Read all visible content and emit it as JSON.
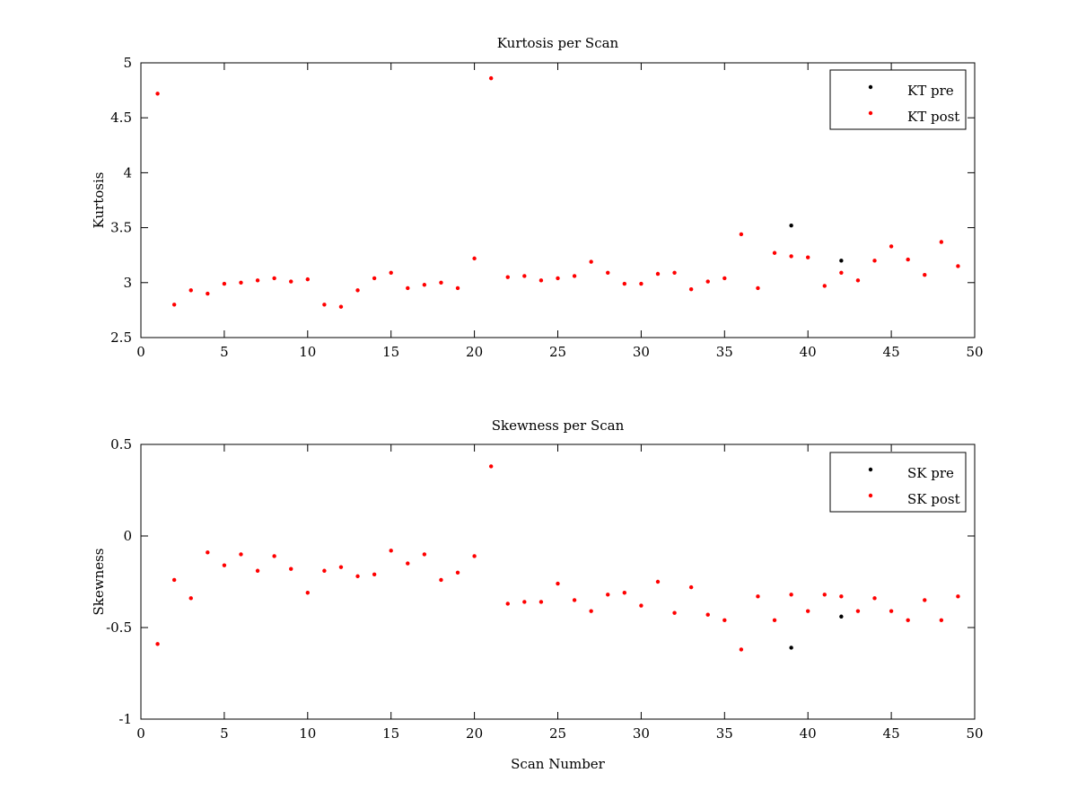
{
  "chart_data": [
    {
      "type": "scatter",
      "title": "Kurtosis per Scan",
      "xlabel": "",
      "ylabel": "Kurtosis",
      "xlim": [
        0,
        50
      ],
      "ylim": [
        2.5,
        5
      ],
      "xticks": [
        0,
        5,
        10,
        15,
        20,
        25,
        30,
        35,
        40,
        45,
        50
      ],
      "xtick_labels": [
        "0",
        "5",
        "10",
        "15",
        "20",
        "25",
        "30",
        "35",
        "40",
        "45",
        "50"
      ],
      "yticks": [
        2.5,
        3,
        3.5,
        4,
        4.5,
        5
      ],
      "ytick_labels": [
        "2.5",
        "3",
        "3.5",
        "4",
        "4.5",
        "5"
      ],
      "grid": false,
      "legend_position": "top-right",
      "series": [
        {
          "name": "KT pre",
          "color": "#000000",
          "marker": "dot",
          "x": [
            39,
            42
          ],
          "y": [
            3.52,
            3.2
          ]
        },
        {
          "name": "KT post",
          "color": "#ff0000",
          "marker": "dot",
          "x": [
            1,
            2,
            3,
            4,
            5,
            6,
            7,
            8,
            9,
            10,
            11,
            12,
            13,
            14,
            15,
            16,
            17,
            18,
            19,
            20,
            21,
            22,
            23,
            24,
            25,
            26,
            27,
            28,
            29,
            30,
            31,
            32,
            33,
            34,
            35,
            36,
            37,
            38,
            39,
            40,
            41,
            42,
            43,
            44,
            45,
            46,
            47,
            48,
            49
          ],
          "y": [
            4.72,
            2.8,
            2.93,
            2.9,
            2.99,
            3.0,
            3.02,
            3.04,
            3.01,
            3.03,
            2.8,
            2.78,
            2.93,
            3.04,
            3.09,
            2.95,
            2.98,
            3.0,
            2.95,
            3.22,
            4.86,
            3.05,
            3.06,
            3.02,
            3.04,
            3.06,
            3.19,
            3.09,
            2.99,
            2.99,
            3.08,
            3.09,
            2.94,
            3.01,
            3.04,
            3.44,
            2.95,
            3.27,
            3.24,
            3.23,
            2.97,
            3.09,
            3.02,
            3.2,
            3.33,
            3.21,
            3.07,
            3.37,
            3.15
          ]
        }
      ]
    },
    {
      "type": "scatter",
      "title": "Skewness per Scan",
      "xlabel": "Scan Number",
      "ylabel": "Skewness",
      "xlim": [
        0,
        50
      ],
      "ylim": [
        -1,
        0.5
      ],
      "xticks": [
        0,
        5,
        10,
        15,
        20,
        25,
        30,
        35,
        40,
        45,
        50
      ],
      "xtick_labels": [
        "0",
        "5",
        "10",
        "15",
        "20",
        "25",
        "30",
        "35",
        "40",
        "45",
        "50"
      ],
      "yticks": [
        -1,
        -0.5,
        0,
        0.5
      ],
      "ytick_labels": [
        "-1",
        "-0.5",
        "0",
        "0.5"
      ],
      "grid": false,
      "legend_position": "top-right",
      "series": [
        {
          "name": "SK pre",
          "color": "#000000",
          "marker": "dot",
          "x": [
            39,
            42
          ],
          "y": [
            -0.61,
            -0.44
          ]
        },
        {
          "name": "SK post",
          "color": "#ff0000",
          "marker": "dot",
          "x": [
            1,
            2,
            3,
            4,
            5,
            6,
            7,
            8,
            9,
            10,
            11,
            12,
            13,
            14,
            15,
            16,
            17,
            18,
            19,
            20,
            21,
            22,
            23,
            24,
            25,
            26,
            27,
            28,
            29,
            30,
            31,
            32,
            33,
            34,
            35,
            36,
            37,
            38,
            39,
            40,
            41,
            42,
            43,
            44,
            45,
            46,
            47,
            48,
            49
          ],
          "y": [
            -0.59,
            -0.24,
            -0.34,
            -0.09,
            -0.16,
            -0.1,
            -0.19,
            -0.11,
            -0.18,
            -0.31,
            -0.19,
            -0.17,
            -0.22,
            -0.21,
            -0.08,
            -0.15,
            -0.1,
            -0.24,
            -0.2,
            -0.11,
            0.38,
            -0.37,
            -0.36,
            -0.36,
            -0.26,
            -0.35,
            -0.41,
            -0.32,
            -0.31,
            -0.38,
            -0.25,
            -0.42,
            -0.28,
            -0.43,
            -0.46,
            -0.62,
            -0.33,
            -0.46,
            -0.32,
            -0.41,
            -0.32,
            -0.33,
            -0.41,
            -0.34,
            -0.41,
            -0.46,
            -0.35,
            -0.46,
            -0.33
          ]
        }
      ]
    }
  ]
}
